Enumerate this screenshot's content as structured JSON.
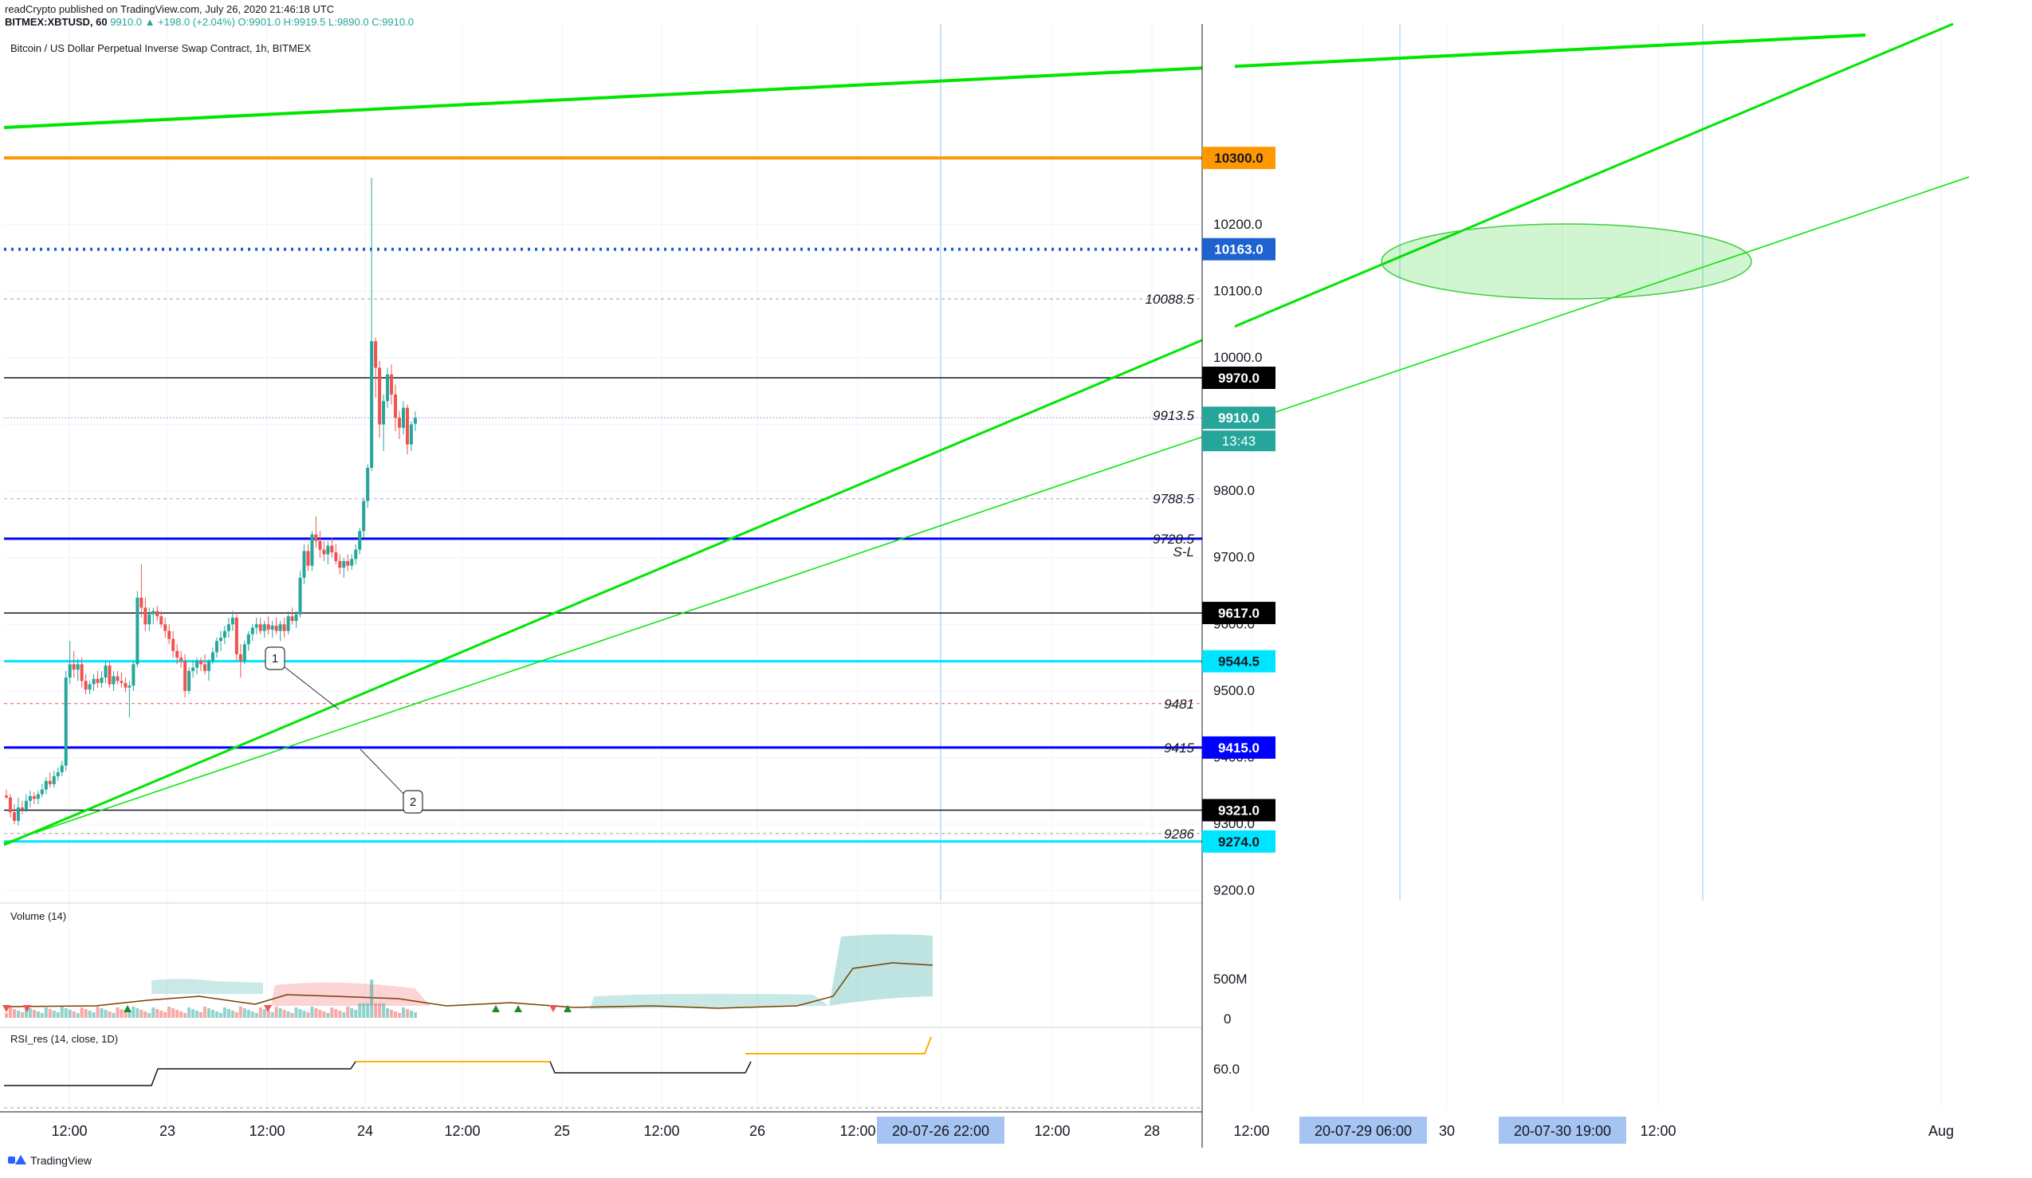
{
  "header": {
    "line1": "readCrypto published on TradingView.com, July 26, 2020 21:46:18 UTC",
    "line2_symbol": "BITMEX:XBTUSD, 60",
    "line2_ohlc": "9910.0 ▲ +198.0 (+2.04%) O:9901.0 H:9919.5 L:9890.0 C:9910.0"
  },
  "symbol_title": "Bitcoin / US Dollar Perpetual Inverse Swap Contract, 1h, BITMEX",
  "branding": "TradingView",
  "colors": {
    "up": "#26a69a",
    "down": "#ef5350",
    "trend_green": "#00e600",
    "orange": "#ff9800",
    "blue": "#0000ff",
    "cyan": "#00e5ff",
    "dotted_blue": "#1e62d0"
  },
  "chart_data": {
    "type": "candlestick",
    "ylim": [
      9190,
      10500
    ],
    "y_ticks": [
      "9200.0",
      "9300.0",
      "9400.0",
      "9500.0",
      "9600.0",
      "9700.0",
      "9800.0",
      "9900.0",
      "10000.0",
      "10100.0",
      "10200.0"
    ],
    "x_ticks": [
      "12:00",
      "23",
      "12:00",
      "24",
      "12:00",
      "25",
      "12:00",
      "26",
      "12:00",
      "20-07-26  22:00",
      "12:00",
      "28",
      "12:00",
      "20-07-29  06:00",
      "30",
      "20-07-30  19:00",
      "12:00",
      "Aug"
    ],
    "highlighted_x_labels": [
      "20-07-26  22:00",
      "20-07-29  06:00",
      "20-07-30  19:00"
    ],
    "candles": [
      [
        9343,
        9352,
        9338,
        9340
      ],
      [
        9340,
        9345,
        9310,
        9318
      ],
      [
        9318,
        9330,
        9300,
        9305
      ],
      [
        9305,
        9340,
        9298,
        9325
      ],
      [
        9325,
        9335,
        9315,
        9322
      ],
      [
        9322,
        9345,
        9318,
        9335
      ],
      [
        9335,
        9350,
        9325,
        9342
      ],
      [
        9342,
        9348,
        9330,
        9338
      ],
      [
        9338,
        9350,
        9330,
        9345
      ],
      [
        9345,
        9360,
        9340,
        9352
      ],
      [
        9352,
        9370,
        9345,
        9365
      ],
      [
        9365,
        9378,
        9355,
        9360
      ],
      [
        9360,
        9380,
        9355,
        9372
      ],
      [
        9372,
        9385,
        9365,
        9378
      ],
      [
        9378,
        9395,
        9372,
        9388
      ],
      [
        9388,
        9530,
        9380,
        9520
      ],
      [
        9520,
        9575,
        9510,
        9540
      ],
      [
        9540,
        9560,
        9520,
        9532
      ],
      [
        9532,
        9548,
        9515,
        9540
      ],
      [
        9540,
        9550,
        9505,
        9515
      ],
      [
        9515,
        9525,
        9495,
        9502
      ],
      [
        9502,
        9515,
        9495,
        9510
      ],
      [
        9510,
        9525,
        9500,
        9518
      ],
      [
        9518,
        9530,
        9505,
        9512
      ],
      [
        9512,
        9530,
        9505,
        9520
      ],
      [
        9520,
        9545,
        9512,
        9538
      ],
      [
        9538,
        9545,
        9505,
        9510
      ],
      [
        9510,
        9530,
        9500,
        9522
      ],
      [
        9522,
        9530,
        9510,
        9515
      ],
      [
        9515,
        9528,
        9505,
        9512
      ],
      [
        9512,
        9520,
        9498,
        9505
      ],
      [
        9505,
        9515,
        9460,
        9508
      ],
      [
        9508,
        9545,
        9500,
        9540
      ],
      [
        9540,
        9650,
        9535,
        9640
      ],
      [
        9640,
        9690,
        9610,
        9625
      ],
      [
        9625,
        9640,
        9590,
        9600
      ],
      [
        9600,
        9625,
        9590,
        9615
      ],
      [
        9615,
        9625,
        9600,
        9620
      ],
      [
        9620,
        9628,
        9605,
        9612
      ],
      [
        9612,
        9620,
        9595,
        9600
      ],
      [
        9600,
        9610,
        9580,
        9590
      ],
      [
        9590,
        9600,
        9570,
        9578
      ],
      [
        9578,
        9590,
        9550,
        9560
      ],
      [
        9560,
        9570,
        9540,
        9550
      ],
      [
        9550,
        9560,
        9535,
        9545
      ],
      [
        9545,
        9555,
        9490,
        9500
      ],
      [
        9500,
        9535,
        9495,
        9530
      ],
      [
        9530,
        9545,
        9520,
        9535
      ],
      [
        9535,
        9550,
        9525,
        9545
      ],
      [
        9545,
        9550,
        9530,
        9540
      ],
      [
        9540,
        9555,
        9525,
        9530
      ],
      [
        9530,
        9548,
        9515,
        9545
      ],
      [
        9545,
        9565,
        9540,
        9558
      ],
      [
        9558,
        9580,
        9550,
        9575
      ],
      [
        9575,
        9590,
        9560,
        9580
      ],
      [
        9580,
        9598,
        9570,
        9590
      ],
      [
        9590,
        9610,
        9580,
        9600
      ],
      [
        9600,
        9620,
        9590,
        9610
      ],
      [
        9610,
        9615,
        9545,
        9555
      ],
      [
        9555,
        9570,
        9520,
        9545
      ],
      [
        9545,
        9575,
        9540,
        9570
      ],
      [
        9570,
        9590,
        9560,
        9585
      ],
      [
        9585,
        9600,
        9575,
        9595
      ],
      [
        9595,
        9610,
        9585,
        9600
      ],
      [
        9600,
        9610,
        9585,
        9590
      ],
      [
        9590,
        9605,
        9580,
        9600
      ],
      [
        9600,
        9612,
        9585,
        9592
      ],
      [
        9592,
        9605,
        9580,
        9598
      ],
      [
        9598,
        9610,
        9585,
        9590
      ],
      [
        9590,
        9605,
        9575,
        9600
      ],
      [
        9600,
        9610,
        9580,
        9590
      ],
      [
        9590,
        9620,
        9585,
        9612
      ],
      [
        9612,
        9625,
        9600,
        9605
      ],
      [
        9605,
        9620,
        9595,
        9615
      ],
      [
        9615,
        9680,
        9610,
        9670
      ],
      [
        9670,
        9720,
        9660,
        9710
      ],
      [
        9710,
        9720,
        9680,
        9688
      ],
      [
        9688,
        9740,
        9680,
        9735
      ],
      [
        9735,
        9762,
        9715,
        9725
      ],
      [
        9725,
        9740,
        9700,
        9712
      ],
      [
        9712,
        9725,
        9695,
        9705
      ],
      [
        9705,
        9725,
        9690,
        9718
      ],
      [
        9718,
        9730,
        9700,
        9708
      ],
      [
        9708,
        9720,
        9690,
        9695
      ],
      [
        9695,
        9705,
        9675,
        9685
      ],
      [
        9685,
        9700,
        9670,
        9695
      ],
      [
        9695,
        9705,
        9680,
        9688
      ],
      [
        9688,
        9705,
        9682,
        9698
      ],
      [
        9698,
        9720,
        9690,
        9712
      ],
      [
        9712,
        9745,
        9705,
        9740
      ],
      [
        9740,
        9790,
        9730,
        9785
      ],
      [
        9785,
        9840,
        9775,
        9835
      ],
      [
        9835,
        10270,
        9830,
        10025
      ],
      [
        10025,
        10030,
        9940,
        9985
      ],
      [
        9985,
        9995,
        9880,
        9900
      ],
      [
        9900,
        9945,
        9860,
        9935
      ],
      [
        9935,
        9985,
        9925,
        9975
      ],
      [
        9975,
        9990,
        9930,
        9945
      ],
      [
        9945,
        9960,
        9890,
        9910
      ],
      [
        9910,
        9920,
        9878,
        9895
      ],
      [
        9895,
        9935,
        9885,
        9925
      ],
      [
        9925,
        9930,
        9855,
        9870
      ],
      [
        9870,
        9905,
        9860,
        9900
      ],
      [
        9901,
        9919.5,
        9890,
        9910
      ]
    ],
    "horizontal_levels": [
      {
        "price": 10300,
        "label": "10300.0",
        "color": "#ff9800",
        "style": "solid"
      },
      {
        "price": 10163,
        "label": "10163.0",
        "color": "#1e62d0",
        "style": "dotted"
      },
      {
        "price": 9970,
        "label": "9970.0",
        "color": "#131722",
        "style": "solid"
      },
      {
        "price": 9910,
        "label": "9910.0",
        "color": "#26a69a",
        "style": "last"
      },
      {
        "price": 9728.5,
        "label": "",
        "color": "#0000ff",
        "style": "solid"
      },
      {
        "price": 9617,
        "label": "9617.0",
        "color": "#131722",
        "style": "solid"
      },
      {
        "price": 9544.5,
        "label": "9544.5",
        "color": "#00e5ff",
        "style": "solid"
      },
      {
        "price": 9415,
        "label": "9415.0",
        "color": "#0000ff",
        "style": "solid"
      },
      {
        "price": 9321,
        "label": "9321.0",
        "color": "#131722",
        "style": "solid"
      },
      {
        "price": 9274,
        "label": "9274.0",
        "color": "#00e5ff",
        "style": "solid"
      }
    ],
    "price_annotations": [
      {
        "price": 10088.5,
        "label": "10088.5",
        "color": "#9e9e9e"
      },
      {
        "price": 9913.5,
        "label": "9913.5",
        "color": "#b39ddb"
      },
      {
        "price": 9788.5,
        "label": "9788.5",
        "color": "#b39ddb"
      },
      {
        "price": 9728.5,
        "label": "9728.5",
        "color": "#0000ff"
      },
      {
        "price": 9481,
        "label": "9481",
        "color": "#ef5350"
      },
      {
        "price": 9415,
        "label": "9415",
        "color": "#0000ff"
      },
      {
        "price": 9286,
        "label": "9286",
        "color": "#9e9e9e"
      }
    ],
    "sl_label": "S-L",
    "countdown": "13:43",
    "callouts": [
      "1",
      "2"
    ],
    "volume_panel": {
      "title": "Volume (14)",
      "ticks": [
        "500M",
        "0"
      ]
    },
    "rsi_panel": {
      "title": "RSI_res (14, close, 1D)",
      "ticks": [
        "60.0"
      ]
    }
  }
}
